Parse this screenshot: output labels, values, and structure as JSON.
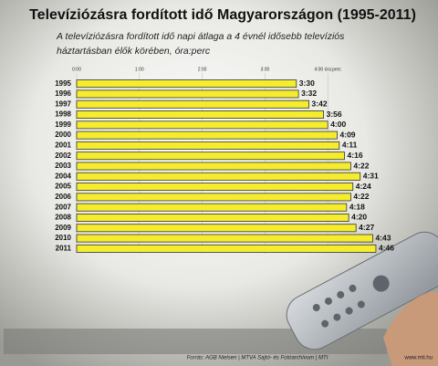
{
  "chart_data": {
    "type": "bar",
    "orientation": "horizontal",
    "title": "Televíziózásra fordított idő Magyarországon (1995-2011)",
    "subtitle": [
      "A televíziózásra fordított idő napi átlaga a 4 évnél idősebb televíziós",
      "háztartásban élők körében, óra:perc"
    ],
    "categories": [
      "1995",
      "1996",
      "1997",
      "1998",
      "1999",
      "2000",
      "2001",
      "2002",
      "2003",
      "2004",
      "2005",
      "2006",
      "2007",
      "2008",
      "2009",
      "2010",
      "2011"
    ],
    "values": [
      210,
      212,
      222,
      236,
      240,
      249,
      251,
      256,
      262,
      271,
      264,
      262,
      258,
      260,
      267,
      283,
      286
    ],
    "value_labels": [
      "3:30",
      "3:32",
      "3:42",
      "3:56",
      "4:00",
      "4:09",
      "4:11",
      "4:16",
      "4:22",
      "4:31",
      "4:24",
      "4:22",
      "4:18",
      "4:20",
      "4:27",
      "4:43",
      "4:46"
    ],
    "color": "#f4ec2c",
    "xlim": [
      0,
      300
    ],
    "xticks": [
      {
        "value": 0,
        "label": "0:00"
      },
      {
        "value": 60,
        "label": "1:00"
      },
      {
        "value": 120,
        "label": "2:00"
      },
      {
        "value": 180,
        "label": "3:00"
      },
      {
        "value": 240,
        "label": "4:00 óra:perc"
      }
    ],
    "grid": true,
    "source": "Forrás: AGB Nielsen | MTVA Sajtó- és Fotóarchívum | MTI",
    "website": "www.mti.hu"
  }
}
